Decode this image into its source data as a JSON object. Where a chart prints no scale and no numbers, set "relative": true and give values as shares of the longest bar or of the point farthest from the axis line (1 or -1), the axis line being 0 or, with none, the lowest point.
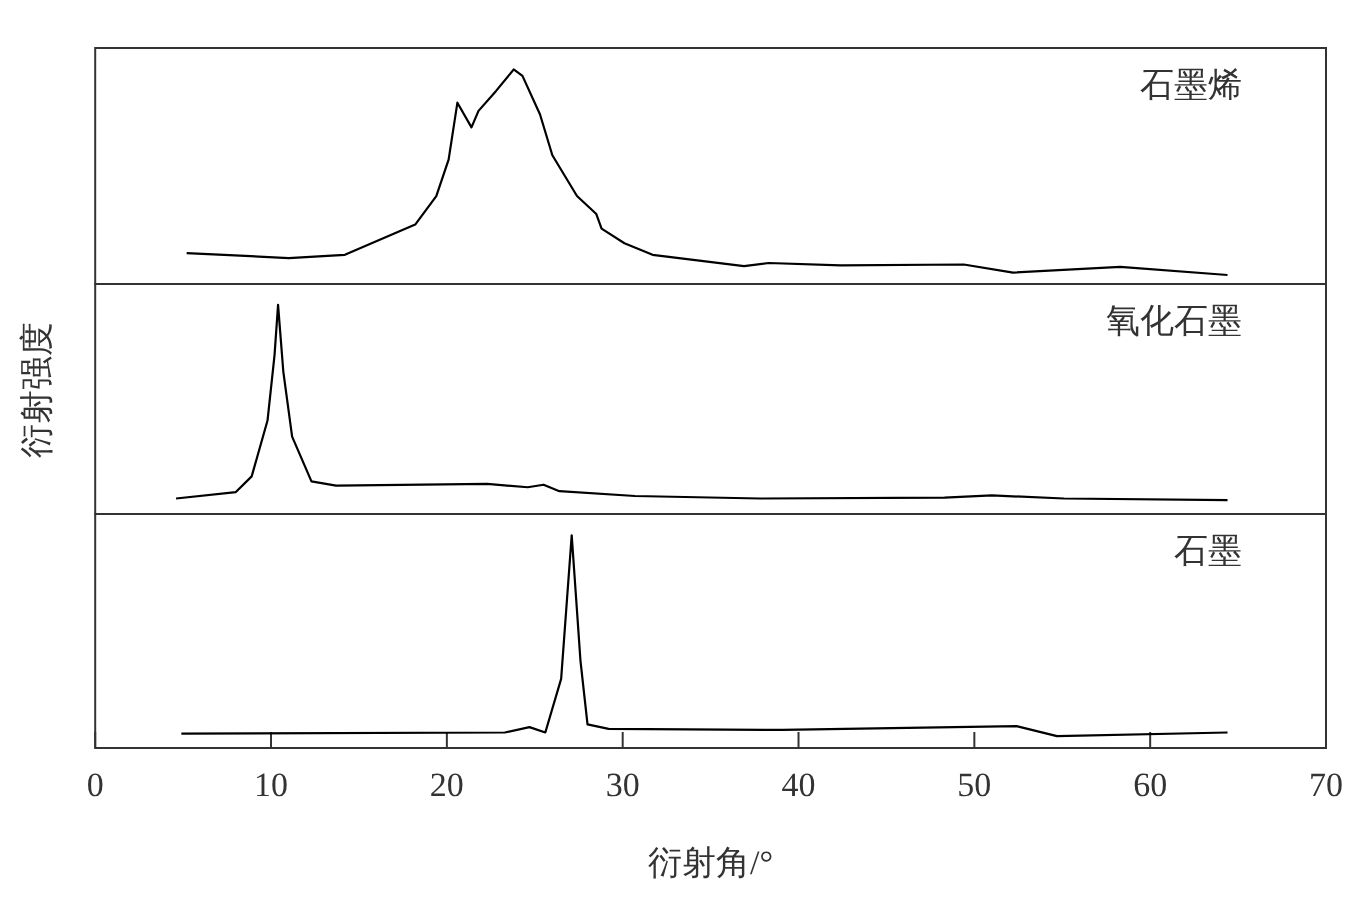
{
  "chart_data": [
    {
      "type": "line",
      "relative": true,
      "xlim": [
        0,
        70
      ],
      "tick_labels": false,
      "series": [
        {
          "name": "石墨烯",
          "color": "#000000",
          "x": [
            5.2,
            11.0,
            14.2,
            18.2,
            19.4,
            20.1,
            20.6,
            21.4,
            21.8,
            22.8,
            23.8,
            24.3,
            25.3,
            26.0,
            27.4,
            28.5,
            28.8,
            30.1,
            31.7,
            36.9,
            38.3,
            42.4,
            49.4,
            52.2,
            58.3,
            64.4
          ],
          "values": [
            0.144,
            0.121,
            0.136,
            0.277,
            0.41,
            0.58,
            0.845,
            0.73,
            0.807,
            0.9,
            1.0,
            0.97,
            0.79,
            0.6,
            0.41,
            0.326,
            0.258,
            0.19,
            0.136,
            0.083,
            0.098,
            0.087,
            0.091,
            0.053,
            0.08,
            0.042
          ]
        }
      ]
    },
    {
      "type": "line",
      "relative": true,
      "xlim": [
        0,
        70
      ],
      "tick_labels": false,
      "ylabel": "衍射强度",
      "series": [
        {
          "name": "氧化石墨",
          "color": "#000000",
          "x": [
            4.6,
            8.0,
            8.9,
            9.8,
            10.2,
            10.4,
            10.7,
            11.2,
            12.3,
            13.7,
            22.3,
            24.6,
            25.5,
            26.4,
            30.7,
            37.8,
            48.3,
            51.0,
            55.1,
            64.4
          ],
          "values": [
            0.074,
            0.105,
            0.18,
            0.447,
            0.76,
            1.0,
            0.68,
            0.37,
            0.156,
            0.136,
            0.144,
            0.128,
            0.14,
            0.109,
            0.086,
            0.074,
            0.078,
            0.089,
            0.074,
            0.066
          ]
        }
      ]
    },
    {
      "type": "line",
      "relative": true,
      "xlim": [
        0,
        70
      ],
      "xticks": [
        0,
        10,
        20,
        30,
        40,
        50,
        60,
        70
      ],
      "tick_labels": "x",
      "xlabel": "衍射角/°",
      "series": [
        {
          "name": "石墨",
          "color": "#000000",
          "x": [
            4.9,
            23.3,
            24.7,
            25.6,
            26.5,
            27.1,
            27.6,
            28.0,
            29.2,
            39.1,
            52.4,
            54.7,
            64.4
          ],
          "values": [
            0.068,
            0.073,
            0.098,
            0.073,
            0.325,
            1.0,
            0.41,
            0.111,
            0.09,
            0.085,
            0.103,
            0.056,
            0.073
          ]
        }
      ]
    }
  ]
}
